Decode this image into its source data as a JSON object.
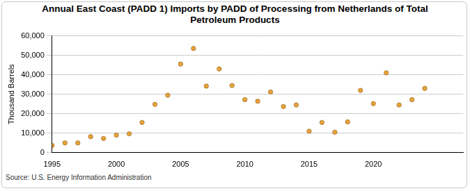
{
  "chart_data": {
    "type": "scatter",
    "title": "Annual East Coast (PADD 1) Imports by PADD of Processing from Netherlands of Total Petroleum Products",
    "y_label": "Thousand Barrels",
    "source": "Source: U.S. Energy Information Administration",
    "x": [
      1995,
      1996,
      1997,
      1998,
      1999,
      2000,
      2001,
      2002,
      2003,
      2004,
      2005,
      2006,
      2007,
      2008,
      2009,
      2010,
      2011,
      2012,
      2013,
      2014,
      2015,
      2016,
      2017,
      2018,
      2019,
      2020,
      2021,
      2022,
      2023,
      2024
    ],
    "values": [
      3700,
      5000,
      5000,
      8200,
      7300,
      9000,
      9700,
      15500,
      24800,
      29500,
      45500,
      53500,
      34200,
      43000,
      34500,
      27200,
      26400,
      31200,
      23700,
      24500,
      11000,
      15500,
      10500,
      15800,
      32000,
      25200,
      41000,
      24500,
      27200,
      33000
    ],
    "color": "#e8a33c",
    "marker": "circle",
    "xlim": [
      1995,
      2027
    ],
    "xticks": [
      1995,
      2000,
      2005,
      2010,
      2015,
      2020
    ],
    "ylim": [
      0,
      60000
    ],
    "yticks": [
      0,
      {
        "value": 10000,
        "label": "10,000"
      },
      {
        "value": 20000,
        "label": "20,000"
      },
      {
        "value": 30000,
        "label": "30,000"
      },
      {
        "value": 40000,
        "label": "40,000"
      },
      {
        "value": 50000,
        "label": "50,000"
      },
      {
        "value": 60000,
        "label": "60,000"
      }
    ],
    "grid": true
  }
}
